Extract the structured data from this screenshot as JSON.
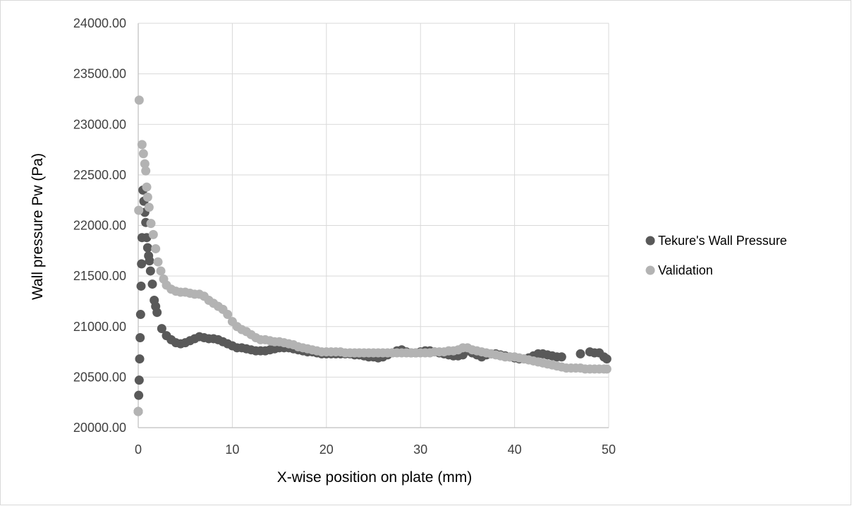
{
  "chart_data": {
    "type": "scatter",
    "xlabel": "X-wise position on plate (mm)",
    "ylabel": "Wall pressure Pw (Pa)",
    "xlim": [
      0,
      50
    ],
    "ylim": [
      20000,
      24000
    ],
    "x_ticks": [
      "0",
      "10",
      "20",
      "30",
      "40",
      "50"
    ],
    "y_ticks": [
      "20000.00",
      "20500.00",
      "21000.00",
      "21500.00",
      "22000.00",
      "22500.00",
      "23000.00",
      "23500.00",
      "24000.00"
    ],
    "grid": true,
    "legend_position": "right",
    "series": [
      {
        "name": "Tekure's Wall Pressure",
        "color": "#595959",
        "points": [
          [
            0.0,
            20160
          ],
          [
            0.05,
            20320
          ],
          [
            0.1,
            20470
          ],
          [
            0.15,
            20680
          ],
          [
            0.2,
            20890
          ],
          [
            0.25,
            21120
          ],
          [
            0.3,
            21400
          ],
          [
            0.35,
            21620
          ],
          [
            0.4,
            21880
          ],
          [
            0.5,
            22350
          ],
          [
            0.6,
            22240
          ],
          [
            0.7,
            22130
          ],
          [
            0.8,
            22030
          ],
          [
            0.9,
            21880
          ],
          [
            1.0,
            21780
          ],
          [
            1.1,
            21700
          ],
          [
            1.2,
            21650
          ],
          [
            1.3,
            21550
          ],
          [
            1.5,
            21420
          ],
          [
            1.7,
            21260
          ],
          [
            1.85,
            21200
          ],
          [
            2.0,
            21140
          ],
          [
            2.5,
            20980
          ],
          [
            3.0,
            20910
          ],
          [
            3.5,
            20870
          ],
          [
            4.0,
            20840
          ],
          [
            4.5,
            20830
          ],
          [
            5.0,
            20840
          ],
          [
            5.5,
            20860
          ],
          [
            6.0,
            20880
          ],
          [
            6.5,
            20900
          ],
          [
            7.0,
            20890
          ],
          [
            7.5,
            20880
          ],
          [
            8.0,
            20880
          ],
          [
            8.5,
            20870
          ],
          [
            9.0,
            20850
          ],
          [
            9.5,
            20830
          ],
          [
            10.0,
            20810
          ],
          [
            10.5,
            20790
          ],
          [
            11.0,
            20790
          ],
          [
            11.5,
            20780
          ],
          [
            12.0,
            20770
          ],
          [
            12.5,
            20760
          ],
          [
            13.0,
            20760
          ],
          [
            13.5,
            20760
          ],
          [
            14.0,
            20770
          ],
          [
            14.5,
            20780
          ],
          [
            15.0,
            20790
          ],
          [
            15.5,
            20790
          ],
          [
            16.0,
            20790
          ],
          [
            16.5,
            20780
          ],
          [
            17.0,
            20770
          ],
          [
            17.5,
            20760
          ],
          [
            18.0,
            20750
          ],
          [
            18.5,
            20750
          ],
          [
            19.0,
            20740
          ],
          [
            19.5,
            20730
          ],
          [
            20.0,
            20730
          ],
          [
            20.5,
            20730
          ],
          [
            21.0,
            20730
          ],
          [
            21.5,
            20730
          ],
          [
            22.0,
            20730
          ],
          [
            22.5,
            20730
          ],
          [
            23.0,
            20720
          ],
          [
            23.5,
            20720
          ],
          [
            24.0,
            20710
          ],
          [
            24.5,
            20700
          ],
          [
            25.0,
            20700
          ],
          [
            25.5,
            20690
          ],
          [
            26.0,
            20700
          ],
          [
            26.5,
            20720
          ],
          [
            27.0,
            20740
          ],
          [
            27.5,
            20760
          ],
          [
            28.0,
            20770
          ],
          [
            28.5,
            20750
          ],
          [
            29.0,
            20740
          ],
          [
            29.5,
            20740
          ],
          [
            30.0,
            20750
          ],
          [
            30.5,
            20760
          ],
          [
            31.0,
            20760
          ],
          [
            31.5,
            20750
          ],
          [
            32.0,
            20740
          ],
          [
            32.5,
            20730
          ],
          [
            33.0,
            20720
          ],
          [
            33.5,
            20710
          ],
          [
            34.0,
            20710
          ],
          [
            34.5,
            20720
          ],
          [
            35.0,
            20760
          ],
          [
            35.5,
            20740
          ],
          [
            36.0,
            20720
          ],
          [
            36.5,
            20700
          ],
          [
            37.0,
            20720
          ],
          [
            37.5,
            20730
          ],
          [
            38.0,
            20730
          ],
          [
            38.5,
            20720
          ],
          [
            39.0,
            20710
          ],
          [
            39.5,
            20700
          ],
          [
            40.0,
            20690
          ],
          [
            40.5,
            20680
          ],
          [
            41.0,
            20680
          ],
          [
            41.5,
            20690
          ],
          [
            42.0,
            20710
          ],
          [
            42.5,
            20730
          ],
          [
            43.0,
            20730
          ],
          [
            43.5,
            20720
          ],
          [
            44.0,
            20710
          ],
          [
            44.5,
            20700
          ],
          [
            45.0,
            20700
          ],
          [
            47.0,
            20730
          ],
          [
            48.0,
            20750
          ],
          [
            48.5,
            20740
          ],
          [
            49.0,
            20740
          ],
          [
            49.5,
            20700
          ],
          [
            49.8,
            20680
          ]
        ]
      },
      {
        "name": "Validation",
        "color": "#b3b3b3",
        "points": [
          [
            0.0,
            20160
          ],
          [
            0.05,
            22150
          ],
          [
            0.1,
            23240
          ],
          [
            0.4,
            22800
          ],
          [
            0.55,
            22710
          ],
          [
            0.7,
            22610
          ],
          [
            0.8,
            22540
          ],
          [
            0.9,
            22380
          ],
          [
            1.0,
            22280
          ],
          [
            1.15,
            22180
          ],
          [
            1.35,
            22020
          ],
          [
            1.6,
            21910
          ],
          [
            1.85,
            21770
          ],
          [
            2.1,
            21640
          ],
          [
            2.4,
            21550
          ],
          [
            2.7,
            21470
          ],
          [
            3.0,
            21410
          ],
          [
            3.5,
            21370
          ],
          [
            4.0,
            21350
          ],
          [
            4.5,
            21340
          ],
          [
            5.0,
            21340
          ],
          [
            5.5,
            21330
          ],
          [
            6.0,
            21320
          ],
          [
            6.5,
            21320
          ],
          [
            7.0,
            21300
          ],
          [
            7.5,
            21260
          ],
          [
            8.0,
            21230
          ],
          [
            8.5,
            21200
          ],
          [
            9.0,
            21170
          ],
          [
            9.5,
            21120
          ],
          [
            10.0,
            21050
          ],
          [
            10.5,
            21000
          ],
          [
            11.0,
            20970
          ],
          [
            11.5,
            20950
          ],
          [
            12.0,
            20920
          ],
          [
            12.5,
            20890
          ],
          [
            13.0,
            20870
          ],
          [
            13.5,
            20870
          ],
          [
            14.0,
            20860
          ],
          [
            14.5,
            20850
          ],
          [
            15.0,
            20850
          ],
          [
            15.5,
            20840
          ],
          [
            16.0,
            20830
          ],
          [
            16.5,
            20820
          ],
          [
            17.0,
            20800
          ],
          [
            17.5,
            20790
          ],
          [
            18.0,
            20780
          ],
          [
            18.5,
            20770
          ],
          [
            19.0,
            20760
          ],
          [
            19.5,
            20750
          ],
          [
            20.0,
            20750
          ],
          [
            20.5,
            20750
          ],
          [
            21.0,
            20750
          ],
          [
            21.5,
            20750
          ],
          [
            22.0,
            20740
          ],
          [
            22.5,
            20740
          ],
          [
            23.0,
            20740
          ],
          [
            23.5,
            20740
          ],
          [
            24.0,
            20740
          ],
          [
            24.5,
            20740
          ],
          [
            25.0,
            20740
          ],
          [
            25.5,
            20740
          ],
          [
            26.0,
            20740
          ],
          [
            26.5,
            20740
          ],
          [
            27.0,
            20740
          ],
          [
            27.5,
            20740
          ],
          [
            28.0,
            20740
          ],
          [
            28.5,
            20740
          ],
          [
            29.0,
            20740
          ],
          [
            29.5,
            20740
          ],
          [
            30.0,
            20740
          ],
          [
            30.5,
            20740
          ],
          [
            31.0,
            20740
          ],
          [
            31.5,
            20750
          ],
          [
            32.0,
            20750
          ],
          [
            32.5,
            20750
          ],
          [
            33.0,
            20760
          ],
          [
            33.5,
            20760
          ],
          [
            34.0,
            20770
          ],
          [
            34.5,
            20790
          ],
          [
            35.0,
            20790
          ],
          [
            35.5,
            20770
          ],
          [
            36.0,
            20760
          ],
          [
            36.5,
            20750
          ],
          [
            37.0,
            20740
          ],
          [
            37.5,
            20730
          ],
          [
            38.0,
            20720
          ],
          [
            38.5,
            20710
          ],
          [
            39.0,
            20700
          ],
          [
            39.5,
            20700
          ],
          [
            40.0,
            20700
          ],
          [
            40.5,
            20690
          ],
          [
            41.0,
            20680
          ],
          [
            41.5,
            20670
          ],
          [
            42.0,
            20660
          ],
          [
            42.5,
            20650
          ],
          [
            43.0,
            20640
          ],
          [
            43.5,
            20630
          ],
          [
            44.0,
            20620
          ],
          [
            44.5,
            20610
          ],
          [
            45.0,
            20600
          ],
          [
            45.5,
            20590
          ],
          [
            46.0,
            20590
          ],
          [
            46.5,
            20590
          ],
          [
            47.0,
            20590
          ],
          [
            47.5,
            20580
          ],
          [
            48.0,
            20580
          ],
          [
            48.5,
            20580
          ],
          [
            49.0,
            20580
          ],
          [
            49.5,
            20580
          ],
          [
            49.8,
            20580
          ]
        ]
      }
    ]
  }
}
